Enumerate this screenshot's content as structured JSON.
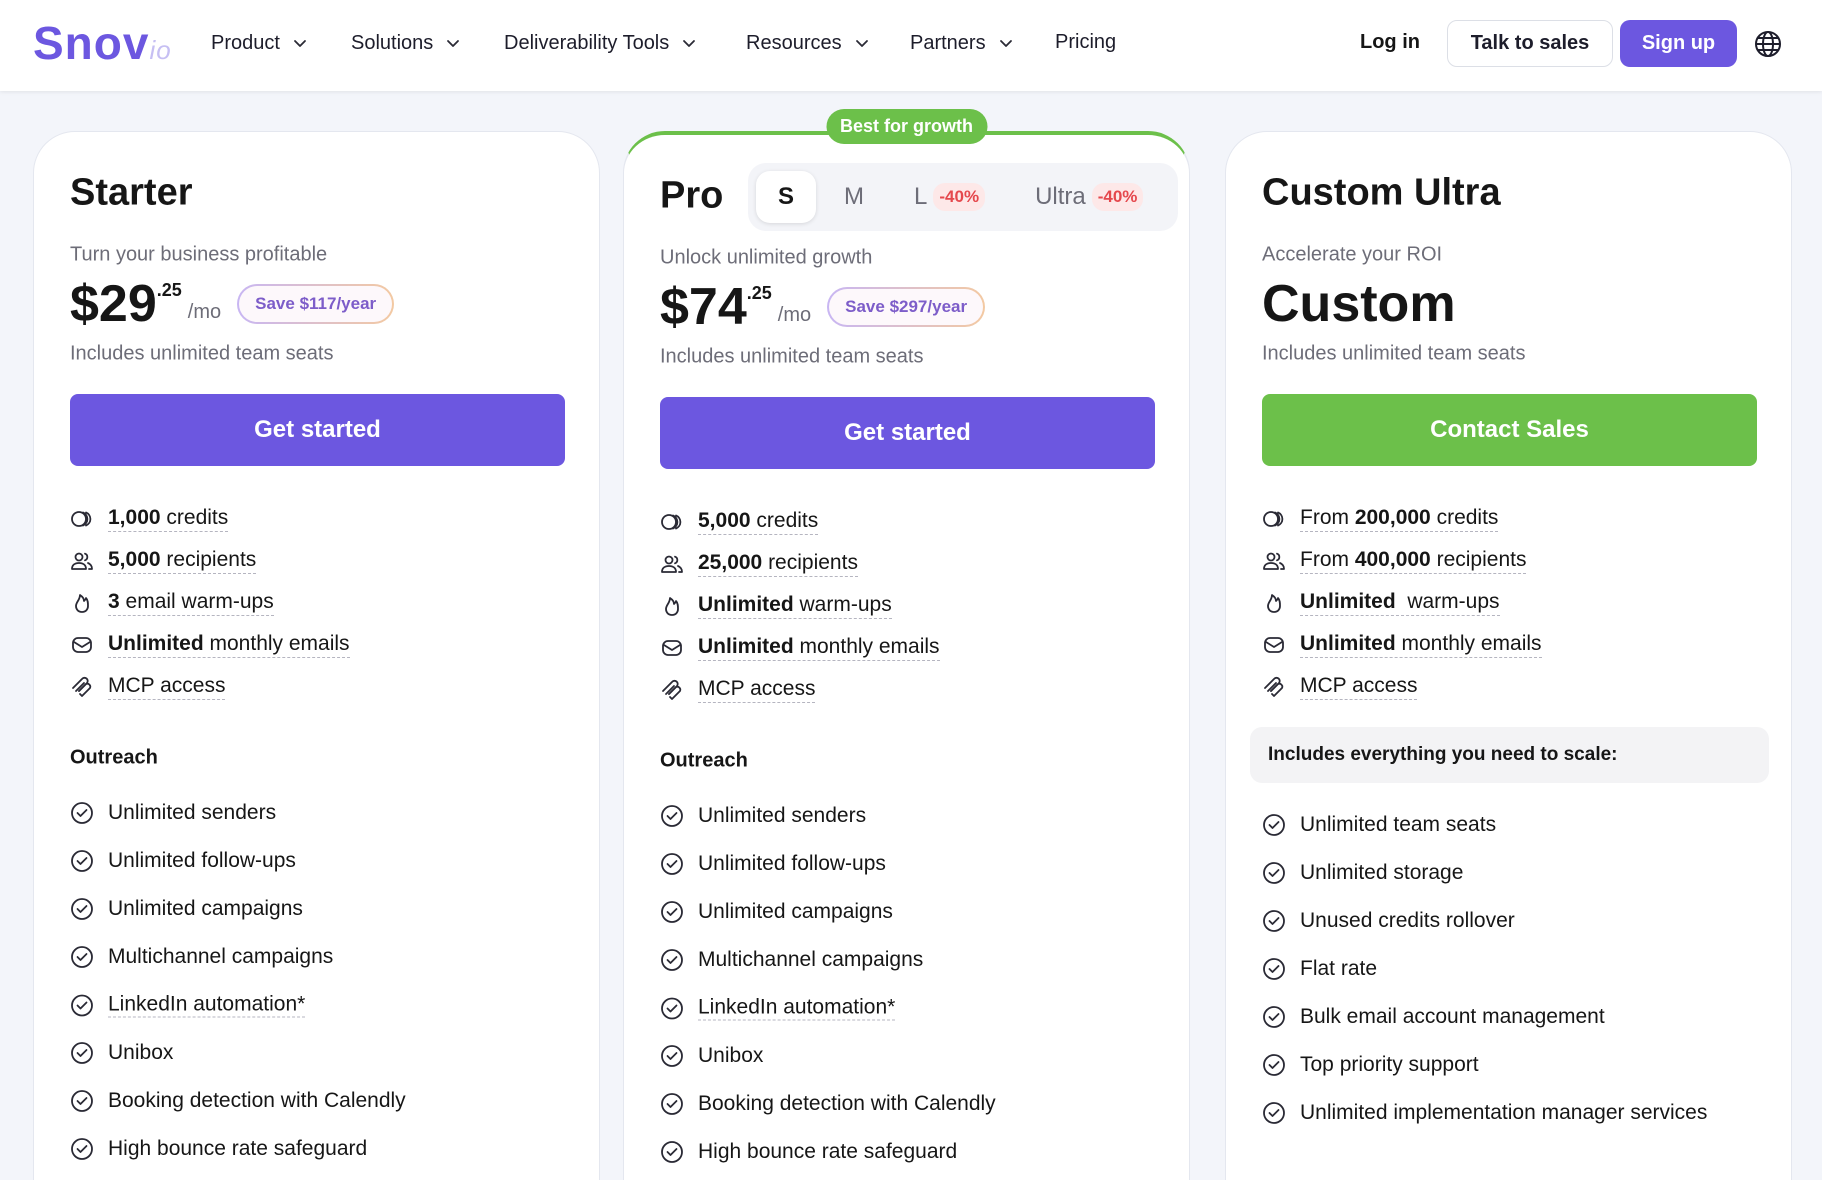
{
  "nav": {
    "logo": "Snov",
    "logo_suffix": "io",
    "menu": [
      {
        "label": "Product",
        "dropdown": true
      },
      {
        "label": "Solutions",
        "dropdown": true
      },
      {
        "label": "Deliverability Tools",
        "dropdown": true
      },
      {
        "label": "Resources",
        "dropdown": true
      },
      {
        "label": "Partners",
        "dropdown": true
      },
      {
        "label": "Pricing",
        "dropdown": false
      }
    ],
    "login": "Log in",
    "talk": "Talk to sales",
    "signup": "Sign up"
  },
  "plans": [
    {
      "name": "Starter",
      "tagline": "Turn your business profitable",
      "price": "$29",
      "cents": ".25",
      "period": "/mo",
      "save": "Save $117/year",
      "seats": "Includes unlimited team seats",
      "cta": "Get started",
      "cta_color": "#6c57e0",
      "features": [
        [
          {
            "bold": "1,000"
          },
          " credits"
        ],
        [
          {
            "bold": "5,000"
          },
          " recipients"
        ],
        [
          {
            "bold": "3"
          },
          " email warm-ups"
        ],
        [
          {
            "bold": "Unlimited"
          },
          " monthly emails"
        ],
        [
          "MCP access"
        ]
      ],
      "section": "Outreach",
      "items": [
        "Unlimited senders",
        "Unlimited follow-ups",
        "Unlimited campaigns",
        "Multichannel campaigns",
        {
          "text": "LinkedIn automation*",
          "dotted": true
        },
        "Unibox",
        "Booking detection with Calendly",
        "High bounce rate safeguard"
      ]
    },
    {
      "name": "Pro",
      "badge": "Best for growth",
      "tabs": [
        {
          "label": "S",
          "selected": true
        },
        {
          "label": "M"
        },
        {
          "label": "L",
          "discount": "-40%"
        },
        {
          "label": "Ultra",
          "discount": "-40%"
        }
      ],
      "tagline": "Unlock unlimited growth",
      "price": "$74",
      "cents": ".25",
      "period": "/mo",
      "save": "Save $297/year",
      "seats": "Includes unlimited team seats",
      "cta": "Get started",
      "cta_color": "#6c57e0",
      "features": [
        [
          {
            "bold": "5,000"
          },
          " credits"
        ],
        [
          {
            "bold": "25,000"
          },
          " recipients"
        ],
        [
          {
            "bold": "Unlimited"
          },
          " warm-ups"
        ],
        [
          {
            "bold": "Unlimited"
          },
          " monthly emails"
        ],
        [
          "MCP access"
        ]
      ],
      "section": "Outreach",
      "items": [
        "Unlimited senders",
        "Unlimited follow-ups",
        "Unlimited campaigns",
        "Multichannel campaigns",
        {
          "text": "LinkedIn automation*",
          "dotted": true
        },
        "Unibox",
        "Booking detection with Calendly",
        "High bounce rate safeguard"
      ]
    },
    {
      "name": "Custom Ultra",
      "tagline": "Accelerate your ROI",
      "price": "Custom",
      "seats": "Includes unlimited team seats",
      "cta": "Contact Sales",
      "cta_color": "#6cc04a",
      "features": [
        [
          "From ",
          {
            "bold": "200,000"
          },
          " credits"
        ],
        [
          "From ",
          {
            "bold": "400,000"
          },
          " recipients"
        ],
        [
          {
            "bold": "Unlimited"
          },
          "  warm-ups"
        ],
        [
          {
            "bold": "Unlimited"
          },
          " monthly emails"
        ],
        [
          "MCP access"
        ]
      ],
      "box": "Includes everything you need to scale:",
      "items": [
        "Unlimited team seats",
        "Unlimited storage",
        "Unused credits rollover",
        "Flat rate",
        "Bulk email account management",
        "Top priority support",
        "Unlimited implementation manager services"
      ]
    }
  ]
}
